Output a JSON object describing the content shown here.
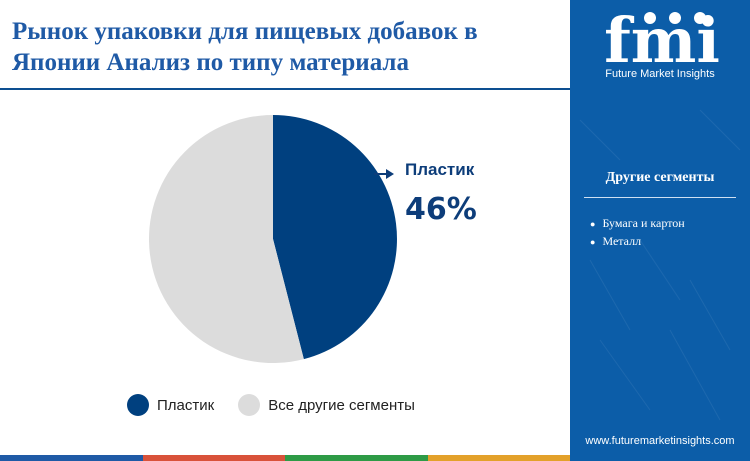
{
  "title": "Рынок упаковки для пищевых добавок в Японии Анализ по типу материала",
  "chart_data": {
    "type": "pie",
    "slices": [
      {
        "label": "Пластик",
        "value": 46,
        "color": "#00407f"
      },
      {
        "label": "Все другие сегменты",
        "value": 54,
        "color": "#dcdcdc"
      }
    ],
    "start_angle_deg": 0,
    "direction": "clockwise"
  },
  "callout": {
    "label": "Пластик",
    "value": "46%"
  },
  "legend": [
    {
      "label": "Пластик",
      "color": "#00407f"
    },
    {
      "label": "Все другие сегменты",
      "color": "#dcdcdc"
    }
  ],
  "sidebar": {
    "logo_text": "fmi",
    "logo_caption": "Future Market Insights",
    "other_heading": "Другие сегменты",
    "other_items": [
      "Бумага и картон",
      "Металл"
    ],
    "website": "www.futuremarketinsights.com"
  },
  "colors": {
    "title": "#1f5aa6",
    "accent": "#00407f",
    "sidebar": "#0c5da8",
    "bottom_bar": [
      "#1f5aa6",
      "#d9523a",
      "#2e9b46",
      "#e3a12a"
    ]
  }
}
